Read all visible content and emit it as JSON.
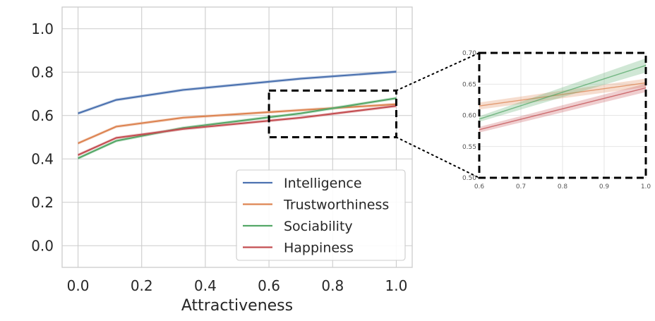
{
  "chart_data": [
    {
      "type": "line",
      "title": "",
      "xlabel": "Attractiveness",
      "ylabel": "",
      "xlim": [
        -0.05,
        1.05
      ],
      "ylim": [
        -0.1,
        1.1
      ],
      "x_ticks": [
        "0.0",
        "0.2",
        "0.4",
        "0.6",
        "0.8",
        "1.0"
      ],
      "y_ticks": [
        "0.0",
        "0.2",
        "0.4",
        "0.6",
        "0.8",
        "1.0"
      ],
      "grid": true,
      "legend_position": "bottom-right",
      "series": [
        {
          "name": "Intelligence",
          "color": "#4C72B0",
          "x": [
            0.0,
            0.12,
            0.33,
            0.7,
            1.0
          ],
          "values": [
            0.61,
            0.672,
            0.718,
            0.77,
            0.802
          ]
        },
        {
          "name": "Trustworthiness",
          "color": "#DD8452",
          "x": [
            0.0,
            0.12,
            0.33,
            0.7,
            1.0
          ],
          "values": [
            0.472,
            0.549,
            0.59,
            0.625,
            0.652
          ]
        },
        {
          "name": "Sociability",
          "color": "#55A868",
          "x": [
            0.0,
            0.12,
            0.33,
            0.7,
            1.0
          ],
          "values": [
            0.403,
            0.483,
            0.543,
            0.61,
            0.68
          ]
        },
        {
          "name": "Happiness",
          "color": "#C44E52",
          "x": [
            0.0,
            0.12,
            0.33,
            0.7,
            1.0
          ],
          "values": [
            0.418,
            0.497,
            0.538,
            0.59,
            0.644
          ]
        }
      ],
      "zoom_box": {
        "x_range": [
          0.6,
          1.0
        ],
        "y_range": [
          0.5,
          0.715
        ]
      }
    },
    {
      "type": "line",
      "title": "",
      "xlabel": "",
      "ylabel": "",
      "xlim": [
        0.6,
        1.0
      ],
      "ylim": [
        0.5,
        0.7
      ],
      "x_ticks": [
        "0.6",
        "0.7",
        "0.8",
        "0.9",
        "1.0"
      ],
      "y_ticks": [
        "0.50",
        "0.55",
        "0.60",
        "0.65",
        "0.70"
      ],
      "grid": true,
      "series": [
        {
          "name": "Trustworthiness",
          "color": "#DD8452",
          "x": [
            0.6,
            1.0
          ],
          "values": [
            0.615,
            0.652
          ]
        },
        {
          "name": "Sociability",
          "color": "#55A868",
          "x": [
            0.6,
            1.0
          ],
          "values": [
            0.594,
            0.68
          ]
        },
        {
          "name": "Happiness",
          "color": "#C44E52",
          "x": [
            0.6,
            1.0
          ],
          "values": [
            0.577,
            0.644
          ]
        }
      ]
    }
  ]
}
